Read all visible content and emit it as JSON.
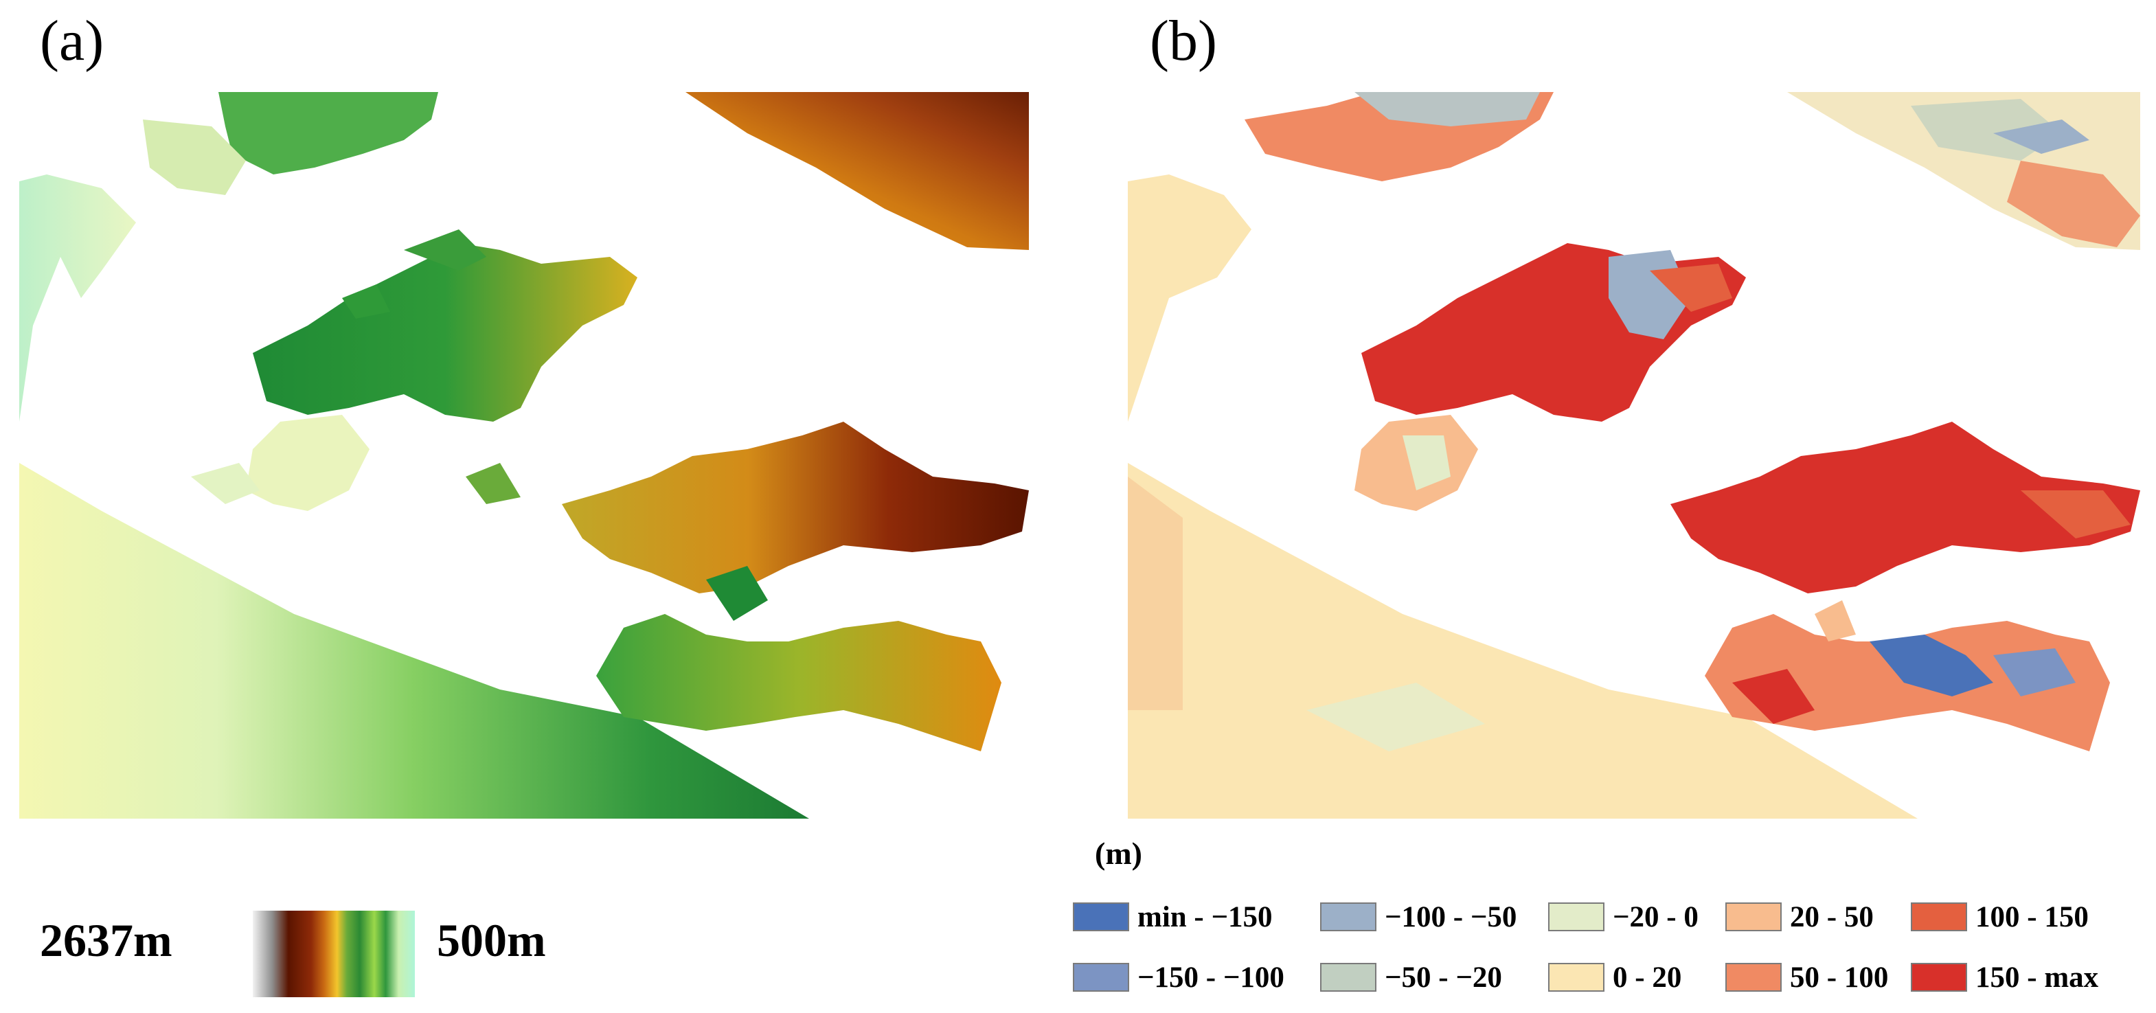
{
  "panels": [
    {
      "label": "(a)"
    },
    {
      "label": "(b)"
    }
  ],
  "elevation_scale": {
    "min_label": "2637m",
    "max_label": "500m",
    "colors": [
      "#f2f2f2",
      "#5a1400",
      "#c96a13",
      "#f3c52c",
      "#2b8a34",
      "#9bd84a",
      "#aef5d8"
    ]
  },
  "difference_legend": {
    "unit": "(m)",
    "items": [
      {
        "label": "min - −150",
        "color": "#4a72b8"
      },
      {
        "label": "−150 - −100",
        "color": "#7c94c3"
      },
      {
        "label": "−100 - −50",
        "color": "#9cb0c8"
      },
      {
        "label": "−50 - −20",
        "color": "#c1cfc1"
      },
      {
        "label": "−20 - 0",
        "color": "#e3ecc9"
      },
      {
        "label": "0 - 20",
        "color": "#fbe6b3"
      },
      {
        "label": "20 - 50",
        "color": "#f8bc8e"
      },
      {
        "label": "50 - 100",
        "color": "#f08a63"
      },
      {
        "label": "100 - 150",
        "color": "#e4603f"
      },
      {
        "label": "150 - max",
        "color": "#d8302a"
      }
    ]
  }
}
